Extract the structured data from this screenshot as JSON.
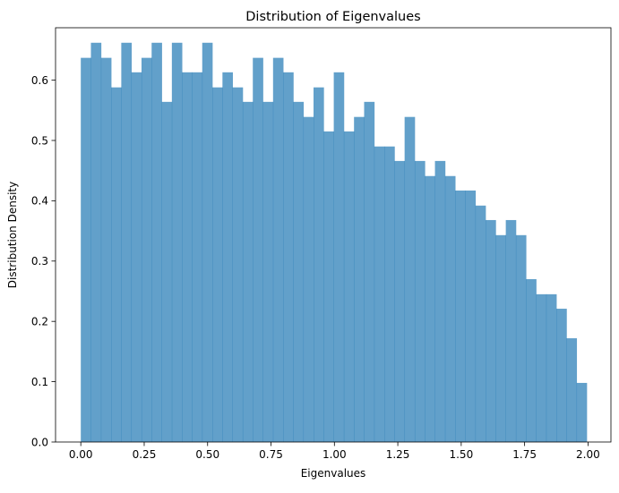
{
  "chart_data": {
    "type": "bar",
    "title": "Distribution of Eigenvalues",
    "xlabel": "Eigenvalues",
    "ylabel": "Distribution Density",
    "xlim": [
      -0.0996,
      2.0904
    ],
    "ylim": [
      0.0,
      0.6869
    ],
    "grid": false,
    "bar_color": "#1f77b4",
    "bar_alpha": 0.7,
    "xticks": [
      0.0,
      0.25,
      0.5,
      0.75,
      1.0,
      1.25,
      1.5,
      1.75,
      2.0
    ],
    "xtick_labels": [
      "0.00",
      "0.25",
      "0.50",
      "0.75",
      "1.00",
      "1.25",
      "1.50",
      "1.75",
      "2.00"
    ],
    "yticks": [
      0.0,
      0.1,
      0.2,
      0.3,
      0.4,
      0.5,
      0.6
    ],
    "ytick_labels": [
      "0.0",
      "0.1",
      "0.2",
      "0.3",
      "0.4",
      "0.5",
      "0.6"
    ],
    "bin_start": 0.0,
    "bin_width": 0.0399,
    "values": [
      0.637,
      0.662,
      0.637,
      0.588,
      0.662,
      0.613,
      0.637,
      0.662,
      0.564,
      0.662,
      0.613,
      0.613,
      0.662,
      0.588,
      0.613,
      0.588,
      0.564,
      0.637,
      0.564,
      0.637,
      0.613,
      0.564,
      0.539,
      0.588,
      0.515,
      0.613,
      0.515,
      0.539,
      0.564,
      0.49,
      0.49,
      0.466,
      0.539,
      0.466,
      0.441,
      0.466,
      0.441,
      0.417,
      0.417,
      0.392,
      0.368,
      0.343,
      0.368,
      0.343,
      0.27,
      0.245,
      0.245,
      0.221,
      0.172,
      0.098
    ]
  }
}
